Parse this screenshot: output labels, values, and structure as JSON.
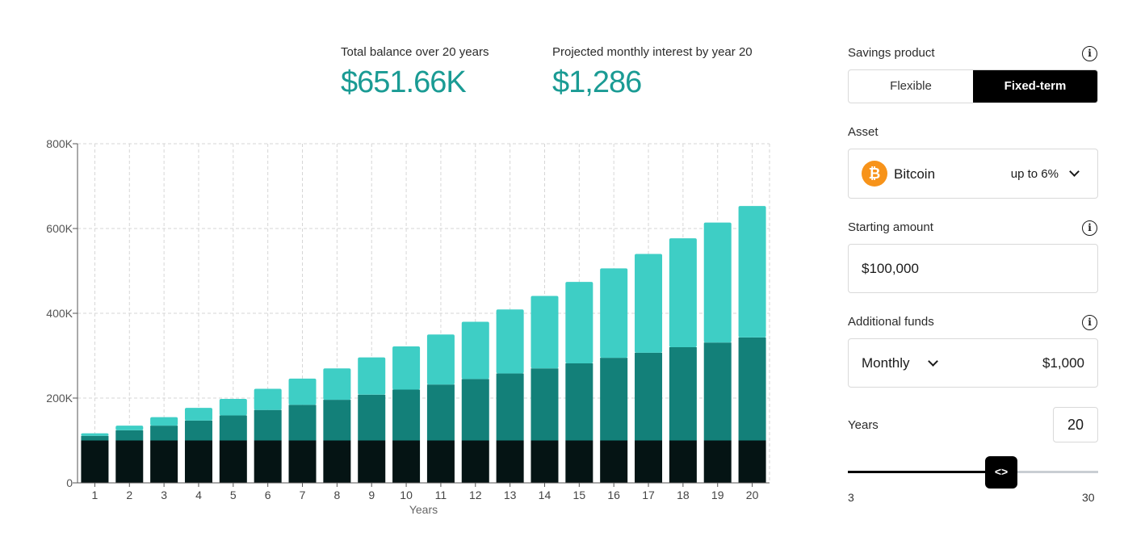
{
  "stats": {
    "total_label": "Total balance over 20 years",
    "total_value": "$651.66K",
    "interest_label": "Projected monthly interest by year 20",
    "interest_value": "$1,286"
  },
  "panel": {
    "savings_product_label": "Savings product",
    "options": [
      "Flexible",
      "Fixed-term"
    ],
    "selected_option": "Fixed-term",
    "asset_label": "Asset",
    "asset_name": "Bitcoin",
    "asset_icon": "bitcoin-icon",
    "asset_rate": "up to 6%",
    "starting_amount_label": "Starting amount",
    "starting_amount_value": "$100,000",
    "additional_funds_label": "Additional funds",
    "frequency": "Monthly",
    "additional_value": "$1,000",
    "years_label": "Years",
    "years_value": "20",
    "slider_min": "3",
    "slider_max": "30",
    "slider_value": 20
  },
  "colors": {
    "accent": "#1a9b94",
    "principal": "#051414",
    "contributions": "#138079",
    "interest": "#3ecec5"
  },
  "chart_data": {
    "type": "bar",
    "stacked": true,
    "xlabel": "Years",
    "ylabel": "",
    "ylim": [
      0,
      800000
    ],
    "yticks": [
      0,
      200000,
      400000,
      600000,
      800000
    ],
    "ytick_labels": [
      "0",
      "200K",
      "400K",
      "600K",
      "800K"
    ],
    "grid": true,
    "categories": [
      "1",
      "2",
      "3",
      "4",
      "5",
      "6",
      "7",
      "8",
      "9",
      "10",
      "11",
      "12",
      "13",
      "14",
      "15",
      "16",
      "17",
      "18",
      "19",
      "20"
    ],
    "series": [
      {
        "values": [
          100000,
          100000,
          100000,
          100000,
          100000,
          100000,
          100000,
          100000,
          100000,
          100000,
          100000,
          100000,
          100000,
          100000,
          100000,
          100000,
          100000,
          100000,
          100000,
          100000
        ]
      },
      {
        "values": [
          11000,
          24000,
          35000,
          47000,
          59000,
          72000,
          84000,
          96000,
          108000,
          120000,
          132000,
          145000,
          158000,
          170000,
          182000,
          195000,
          207000,
          220000,
          231000,
          243000
        ]
      },
      {
        "values": [
          6000,
          11000,
          20000,
          30000,
          39000,
          50000,
          62000,
          74000,
          88000,
          102000,
          118000,
          135000,
          151000,
          171000,
          192000,
          211000,
          233000,
          257000,
          283000,
          310000
        ]
      }
    ]
  }
}
